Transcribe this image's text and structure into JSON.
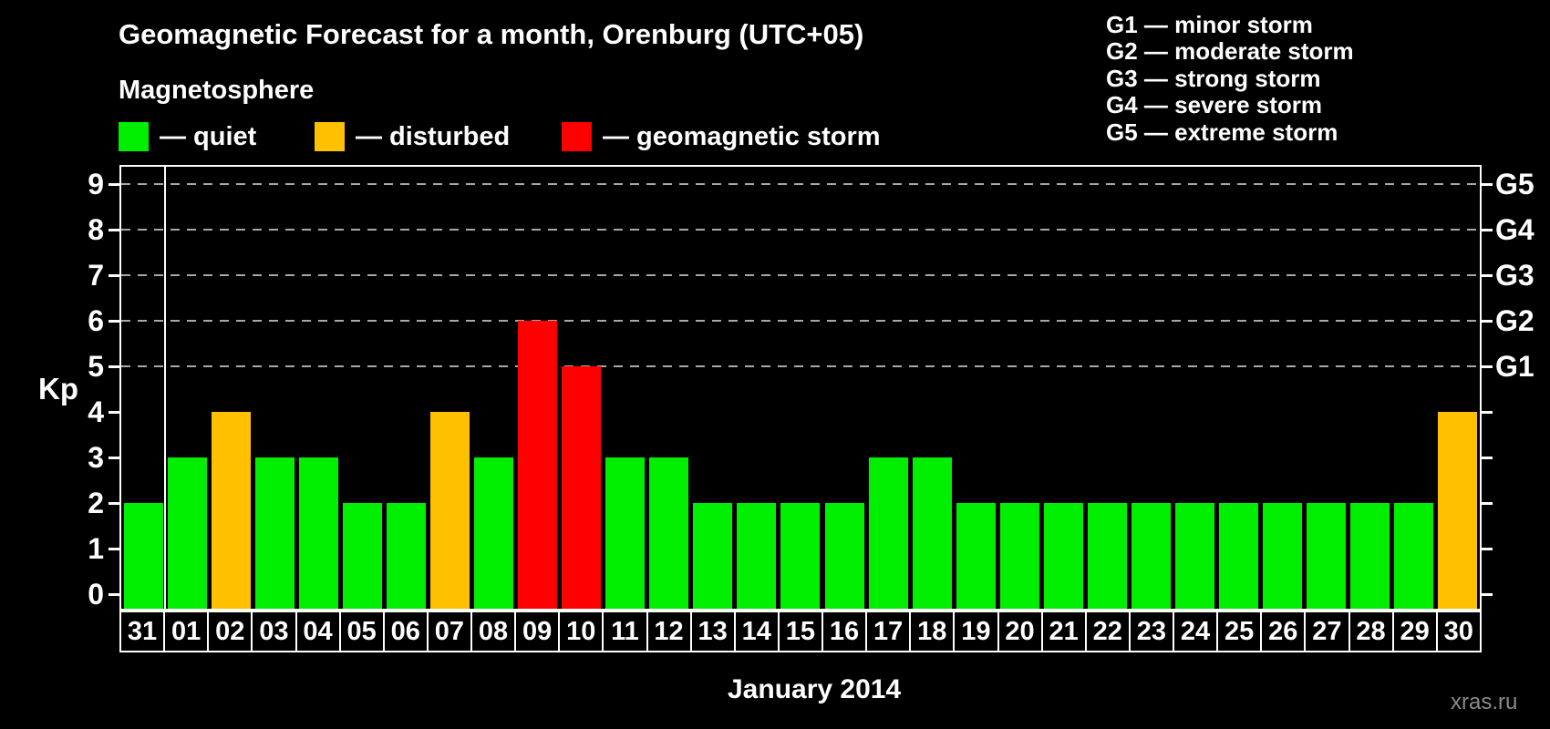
{
  "title": "Geomagnetic Forecast for a month, Orenburg (UTC+05)",
  "legend": {
    "heading": "Magnetosphere",
    "items": [
      {
        "name": "quiet",
        "label": "— quiet",
        "color": "#00ee00"
      },
      {
        "name": "disturbed",
        "label": "— disturbed",
        "color": "#ffc000"
      },
      {
        "name": "storm",
        "label": "— geomagnetic storm",
        "color": "#ff0000"
      }
    ]
  },
  "g_legend": [
    "G1 — minor storm",
    "G2 — moderate storm",
    "G3 — strong storm",
    "G4 — severe storm",
    "G5 — extreme storm"
  ],
  "watermark": "xras.ru",
  "colors": {
    "background": "#000000",
    "frame": "#ffffff",
    "grid": "#a8a8a8",
    "text": "#ffffff",
    "watermark": "#8a8a8a"
  },
  "chart_data": {
    "type": "bar",
    "title": "Geomagnetic Forecast for a month, Orenburg (UTC+05)",
    "xlabel": "January 2014",
    "ylabel": "Kp",
    "ylim": [
      0,
      9
    ],
    "yticks": [
      0,
      1,
      2,
      3,
      4,
      5,
      6,
      7,
      8,
      9
    ],
    "gridlines_at": [
      5,
      6,
      7,
      8,
      9
    ],
    "grid": "dashed horizontal at storm levels only",
    "legend_position": "top",
    "right_axis": [
      {
        "label": "G1",
        "kp": 5
      },
      {
        "label": "G2",
        "kp": 6
      },
      {
        "label": "G3",
        "kp": 7
      },
      {
        "label": "G4",
        "kp": 8
      },
      {
        "label": "G5",
        "kp": 9
      }
    ],
    "categories": [
      "31",
      "01",
      "02",
      "03",
      "04",
      "05",
      "06",
      "07",
      "08",
      "09",
      "10",
      "11",
      "12",
      "13",
      "14",
      "15",
      "16",
      "17",
      "18",
      "19",
      "20",
      "21",
      "22",
      "23",
      "24",
      "25",
      "26",
      "27",
      "28",
      "29",
      "30"
    ],
    "values": [
      2,
      3,
      4,
      3,
      3,
      2,
      2,
      4,
      3,
      6,
      5,
      3,
      3,
      2,
      2,
      2,
      2,
      3,
      3,
      2,
      2,
      2,
      2,
      2,
      2,
      2,
      2,
      2,
      2,
      2,
      4
    ],
    "statuses": [
      "quiet",
      "quiet",
      "disturbed",
      "quiet",
      "quiet",
      "quiet",
      "quiet",
      "disturbed",
      "quiet",
      "storm",
      "storm",
      "quiet",
      "quiet",
      "quiet",
      "quiet",
      "quiet",
      "quiet",
      "quiet",
      "quiet",
      "quiet",
      "quiet",
      "quiet",
      "quiet",
      "quiet",
      "quiet",
      "quiet",
      "quiet",
      "quiet",
      "quiet",
      "quiet",
      "disturbed"
    ],
    "status_colors": {
      "quiet": "#00ee00",
      "disturbed": "#ffc000",
      "storm": "#ff0000"
    },
    "separator_after_index": 0
  }
}
